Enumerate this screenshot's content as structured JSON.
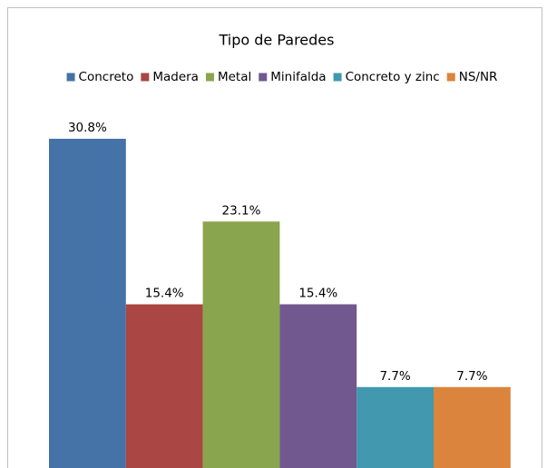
{
  "chart_data": {
    "type": "bar",
    "title": "Tipo de Paredes",
    "categories": [
      null
    ],
    "series": [
      {
        "name": "Concreto",
        "color": "#4572a7",
        "values": [
          30.8
        ],
        "value_labels": [
          "30.8%"
        ]
      },
      {
        "name": "Madera",
        "color": "#aa4643",
        "values": [
          15.4
        ],
        "value_labels": [
          "15.4%"
        ]
      },
      {
        "name": "Metal",
        "color": "#89a54e",
        "values": [
          23.1
        ],
        "value_labels": [
          "23.1%"
        ]
      },
      {
        "name": "Minifalda",
        "color": "#71588f",
        "values": [
          15.4
        ],
        "value_labels": [
          "15.4%"
        ]
      },
      {
        "name": "Concreto y zinc",
        "color": "#4198af",
        "values": [
          7.7
        ],
        "value_labels": [
          "7.7%"
        ]
      },
      {
        "name": "NS/NR",
        "color": "#db843d",
        "values": [
          7.7
        ],
        "value_labels": [
          "7.7%"
        ]
      }
    ],
    "legend": "top"
  }
}
